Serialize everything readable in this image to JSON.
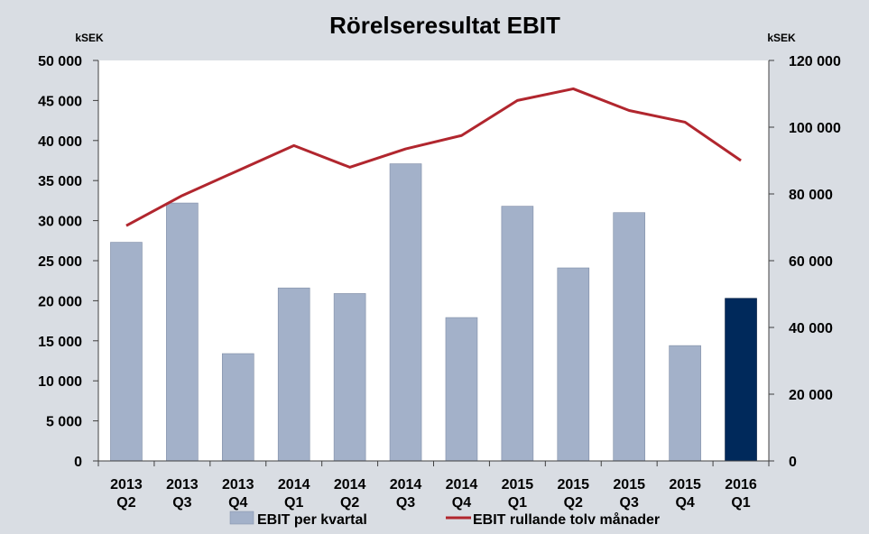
{
  "chart_data": {
    "type": "bar",
    "title": "Rörelseresultat EBIT",
    "y_unit_left": "kSEK",
    "y_unit_right": "kSEK",
    "categories": [
      [
        "2013",
        "Q2"
      ],
      [
        "2013",
        "Q3"
      ],
      [
        "2013",
        "Q4"
      ],
      [
        "2014",
        "Q1"
      ],
      [
        "2014",
        "Q2"
      ],
      [
        "2014",
        "Q3"
      ],
      [
        "2014",
        "Q4"
      ],
      [
        "2015",
        "Q1"
      ],
      [
        "2015",
        "Q2"
      ],
      [
        "2015",
        "Q3"
      ],
      [
        "2015",
        "Q4"
      ],
      [
        "2016",
        "Q1"
      ]
    ],
    "ylim_left": [
      0,
      50000
    ],
    "ylim_right": [
      0,
      120000
    ],
    "yticks_left": [
      {
        "value": 0,
        "label": "0"
      },
      {
        "value": 5000,
        "label": "5 000"
      },
      {
        "value": 10000,
        "label": "10 000"
      },
      {
        "value": 15000,
        "label": "15 000"
      },
      {
        "value": 20000,
        "label": "20 000"
      },
      {
        "value": 25000,
        "label": "25 000"
      },
      {
        "value": 30000,
        "label": "30 000"
      },
      {
        "value": 35000,
        "label": "35 000"
      },
      {
        "value": 40000,
        "label": "40 000"
      },
      {
        "value": 45000,
        "label": "45 000"
      },
      {
        "value": 50000,
        "label": "50 000"
      }
    ],
    "yticks_right": [
      {
        "value": 0,
        "label": "0"
      },
      {
        "value": 20000,
        "label": "20 000"
      },
      {
        "value": 40000,
        "label": "40 000"
      },
      {
        "value": 60000,
        "label": "60 000"
      },
      {
        "value": 80000,
        "label": "80 000"
      },
      {
        "value": 100000,
        "label": "100 000"
      },
      {
        "value": 120000,
        "label": "120 000"
      }
    ],
    "series": [
      {
        "name": "EBIT per kvartal",
        "type": "bar",
        "axis": "left",
        "color": "#a3b1c9",
        "highlight_color": "#00295b",
        "highlight_index": 11,
        "values": [
          27300,
          32200,
          13400,
          21600,
          20900,
          37100,
          17900,
          31800,
          24100,
          31000,
          14400,
          20300
        ]
      },
      {
        "name": "EBIT rullande tolv månader",
        "type": "line",
        "axis": "right",
        "color": "#b1262e",
        "values": [
          70500,
          79500,
          87000,
          94500,
          88000,
          93500,
          97500,
          108000,
          111500,
          105000,
          101500,
          90000
        ]
      }
    ],
    "grid": false,
    "legend_position": "bottom",
    "colors": {
      "background": "#d9dde3",
      "plot_area": "#ffffff"
    }
  }
}
